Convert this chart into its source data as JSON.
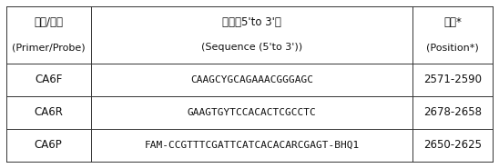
{
  "header_row1": [
    "引物/探针",
    "序列（5'to 3'）",
    "位置*"
  ],
  "header_row2": [
    "(Primer/Probe)",
    "(Sequence (5'to 3'))",
    "(Position*)"
  ],
  "rows": [
    [
      "CA6F",
      "CAAGCYGCAGAAACGGGAGC",
      "2571-2590"
    ],
    [
      "CA6R",
      "GAAGTGYTCCACACTCGCCTC",
      "2678-2658"
    ],
    [
      "CA6P",
      "FAM-CCGTTTCGATTCATCACACARCGAGT-BHQ1",
      "2650-2625"
    ]
  ],
  "bg_color": "#ffffff",
  "line_color": "#333333",
  "text_color": "#111111",
  "header_fontsize": 8.5,
  "body_fontsize": 8.5,
  "fig_width": 5.48,
  "fig_height": 1.85
}
